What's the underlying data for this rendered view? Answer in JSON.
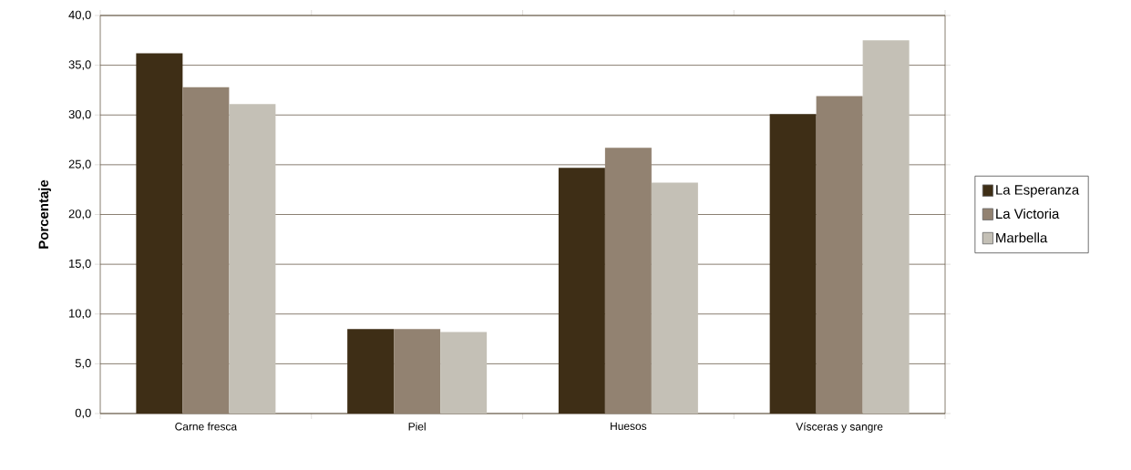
{
  "chart_data": {
    "type": "bar",
    "ylabel": "Porcentaje",
    "categories": [
      "Carne fresca",
      "Piel",
      "Huesos",
      "Vísceras y sangre"
    ],
    "series": [
      {
        "name": "La Esperanza",
        "color": "#3e2e16",
        "values": [
          36.2,
          8.5,
          24.7,
          30.1
        ]
      },
      {
        "name": "La Victoria",
        "color": "#928271",
        "values": [
          32.8,
          8.5,
          26.7,
          31.9
        ]
      },
      {
        "name": "Marbella",
        "color": "#c4c0b6",
        "values": [
          31.1,
          8.2,
          23.2,
          37.5
        ]
      }
    ],
    "ylim": [
      0,
      40
    ],
    "yticks": [
      {
        "value": 0,
        "label": "0,0"
      },
      {
        "value": 5,
        "label": "5,0"
      },
      {
        "value": 10,
        "label": "10,0"
      },
      {
        "value": 15,
        "label": "15,0"
      },
      {
        "value": 20,
        "label": "20,0"
      },
      {
        "value": 25,
        "label": "25,0"
      },
      {
        "value": 30,
        "label": "30,0"
      },
      {
        "value": 35,
        "label": "35,0"
      },
      {
        "value": 40,
        "label": "40,0"
      }
    ],
    "grid": "y",
    "legend": "right"
  }
}
